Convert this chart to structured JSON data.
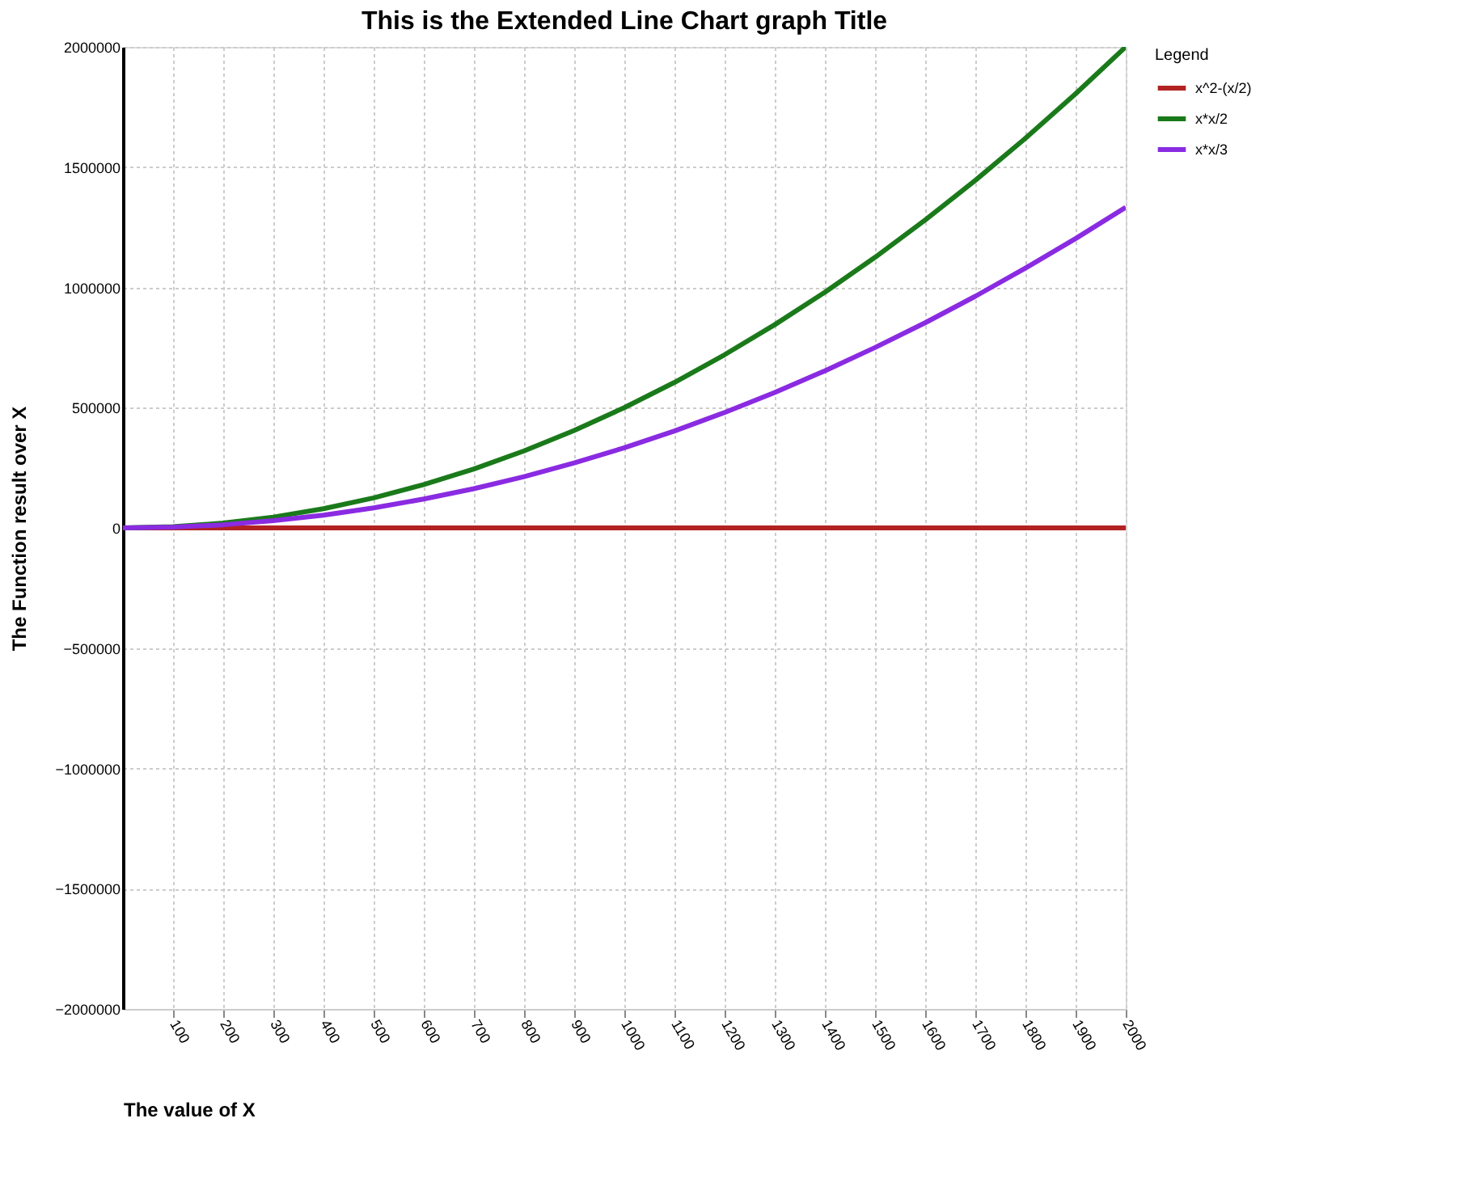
{
  "chart_data": {
    "type": "line",
    "title": "This is the Extended Line Chart graph Title",
    "xlabel": "The value of X",
    "ylabel": "The Function result over X",
    "legend_title": "Legend",
    "x": [
      0,
      100,
      200,
      300,
      400,
      500,
      600,
      700,
      800,
      900,
      1000,
      1100,
      1200,
      1300,
      1400,
      1500,
      1600,
      1700,
      1800,
      1900,
      2000
    ],
    "series": [
      {
        "name": "x^2-(x/2)",
        "color": "#b22222",
        "values": [
          0,
          0,
          0,
          0,
          0,
          0,
          0,
          0,
          0,
          0,
          0,
          0,
          0,
          0,
          0,
          0,
          0,
          0,
          0,
          0,
          0
        ]
      },
      {
        "name": "x*x/2",
        "color": "#1a7a1a",
        "values": [
          0,
          5000,
          20000,
          45000,
          80000,
          125000,
          180000,
          245000,
          320000,
          405000,
          500000,
          605000,
          720000,
          845000,
          980000,
          1125000,
          1280000,
          1445000,
          1620000,
          1805000,
          2000000
        ]
      },
      {
        "name": "x*x/3",
        "color": "#8a2be2",
        "values": [
          0,
          3000,
          13000,
          30000,
          53000,
          83000,
          120000,
          163000,
          213000,
          270000,
          333000,
          403000,
          480000,
          563000,
          653000,
          750000,
          853000,
          963000,
          1080000,
          1203000,
          1333000
        ]
      }
    ],
    "xlim": [
      0,
      2000
    ],
    "xticks": [
      100,
      200,
      300,
      400,
      500,
      600,
      700,
      800,
      900,
      1000,
      1100,
      1200,
      1300,
      1400,
      1500,
      1600,
      1700,
      1800,
      1900,
      2000
    ],
    "ylim": [
      -2000000,
      2000000
    ],
    "yticks": [
      -2000000,
      -1500000,
      -1000000,
      -500000,
      0,
      500000,
      1000000,
      1500000,
      2000000
    ],
    "grid": true,
    "legend": "top right",
    "marker": "none",
    "line_style": "solid"
  }
}
